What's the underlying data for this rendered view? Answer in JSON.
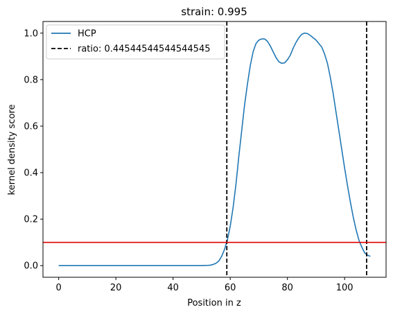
{
  "chart_data": {
    "type": "line",
    "title": "strain: 0.995",
    "xlabel": "Position in z",
    "ylabel": "kernel density score",
    "xlim": [
      -5.5,
      114.5
    ],
    "ylim": [
      -0.05,
      1.05
    ],
    "xticks": [
      0,
      20,
      40,
      60,
      80,
      100
    ],
    "xtick_labels": [
      "0",
      "20",
      "40",
      "60",
      "80",
      "100"
    ],
    "yticks": [
      0.0,
      0.2,
      0.4,
      0.6,
      0.8,
      1.0
    ],
    "ytick_labels": [
      "0.0",
      "0.2",
      "0.4",
      "0.6",
      "0.8",
      "1.0"
    ],
    "grid": false,
    "legend_position": "upper left",
    "series": [
      {
        "name": "HCP",
        "color": "#1f77b4",
        "style": "solid",
        "x": [
          0,
          10,
          20,
          30,
          40,
          45,
          48,
          50,
          52,
          53,
          54,
          55,
          56,
          57,
          58,
          59,
          60,
          61,
          62,
          63,
          64,
          65,
          66,
          67,
          68,
          69,
          70,
          71,
          72,
          73,
          74,
          75,
          76,
          77,
          78,
          79,
          80,
          81,
          82,
          83,
          84,
          85,
          86,
          87,
          88,
          89,
          90,
          91,
          92,
          93,
          94,
          95,
          96,
          97,
          98,
          99,
          100,
          101,
          102,
          103,
          104,
          105,
          106,
          107,
          108,
          109
        ],
        "y": [
          0,
          0,
          0,
          0,
          0,
          0,
          0,
          0,
          0.001,
          0.002,
          0.005,
          0.01,
          0.02,
          0.04,
          0.07,
          0.11,
          0.17,
          0.25,
          0.35,
          0.47,
          0.58,
          0.69,
          0.78,
          0.86,
          0.92,
          0.955,
          0.97,
          0.975,
          0.975,
          0.965,
          0.945,
          0.92,
          0.895,
          0.877,
          0.87,
          0.872,
          0.885,
          0.905,
          0.935,
          0.96,
          0.98,
          0.995,
          1.0,
          0.998,
          0.99,
          0.98,
          0.97,
          0.955,
          0.94,
          0.91,
          0.87,
          0.81,
          0.74,
          0.66,
          0.58,
          0.5,
          0.42,
          0.345,
          0.275,
          0.21,
          0.155,
          0.11,
          0.08,
          0.055,
          0.045,
          0.04
        ]
      },
      {
        "name": "ratio: 0.44544544544544545",
        "color": "#000000",
        "style": "dashed",
        "vlines": [
          58.8,
          107.7
        ]
      },
      {
        "name": "",
        "color": "#e00000",
        "style": "solid",
        "hline": 0.1
      }
    ]
  }
}
